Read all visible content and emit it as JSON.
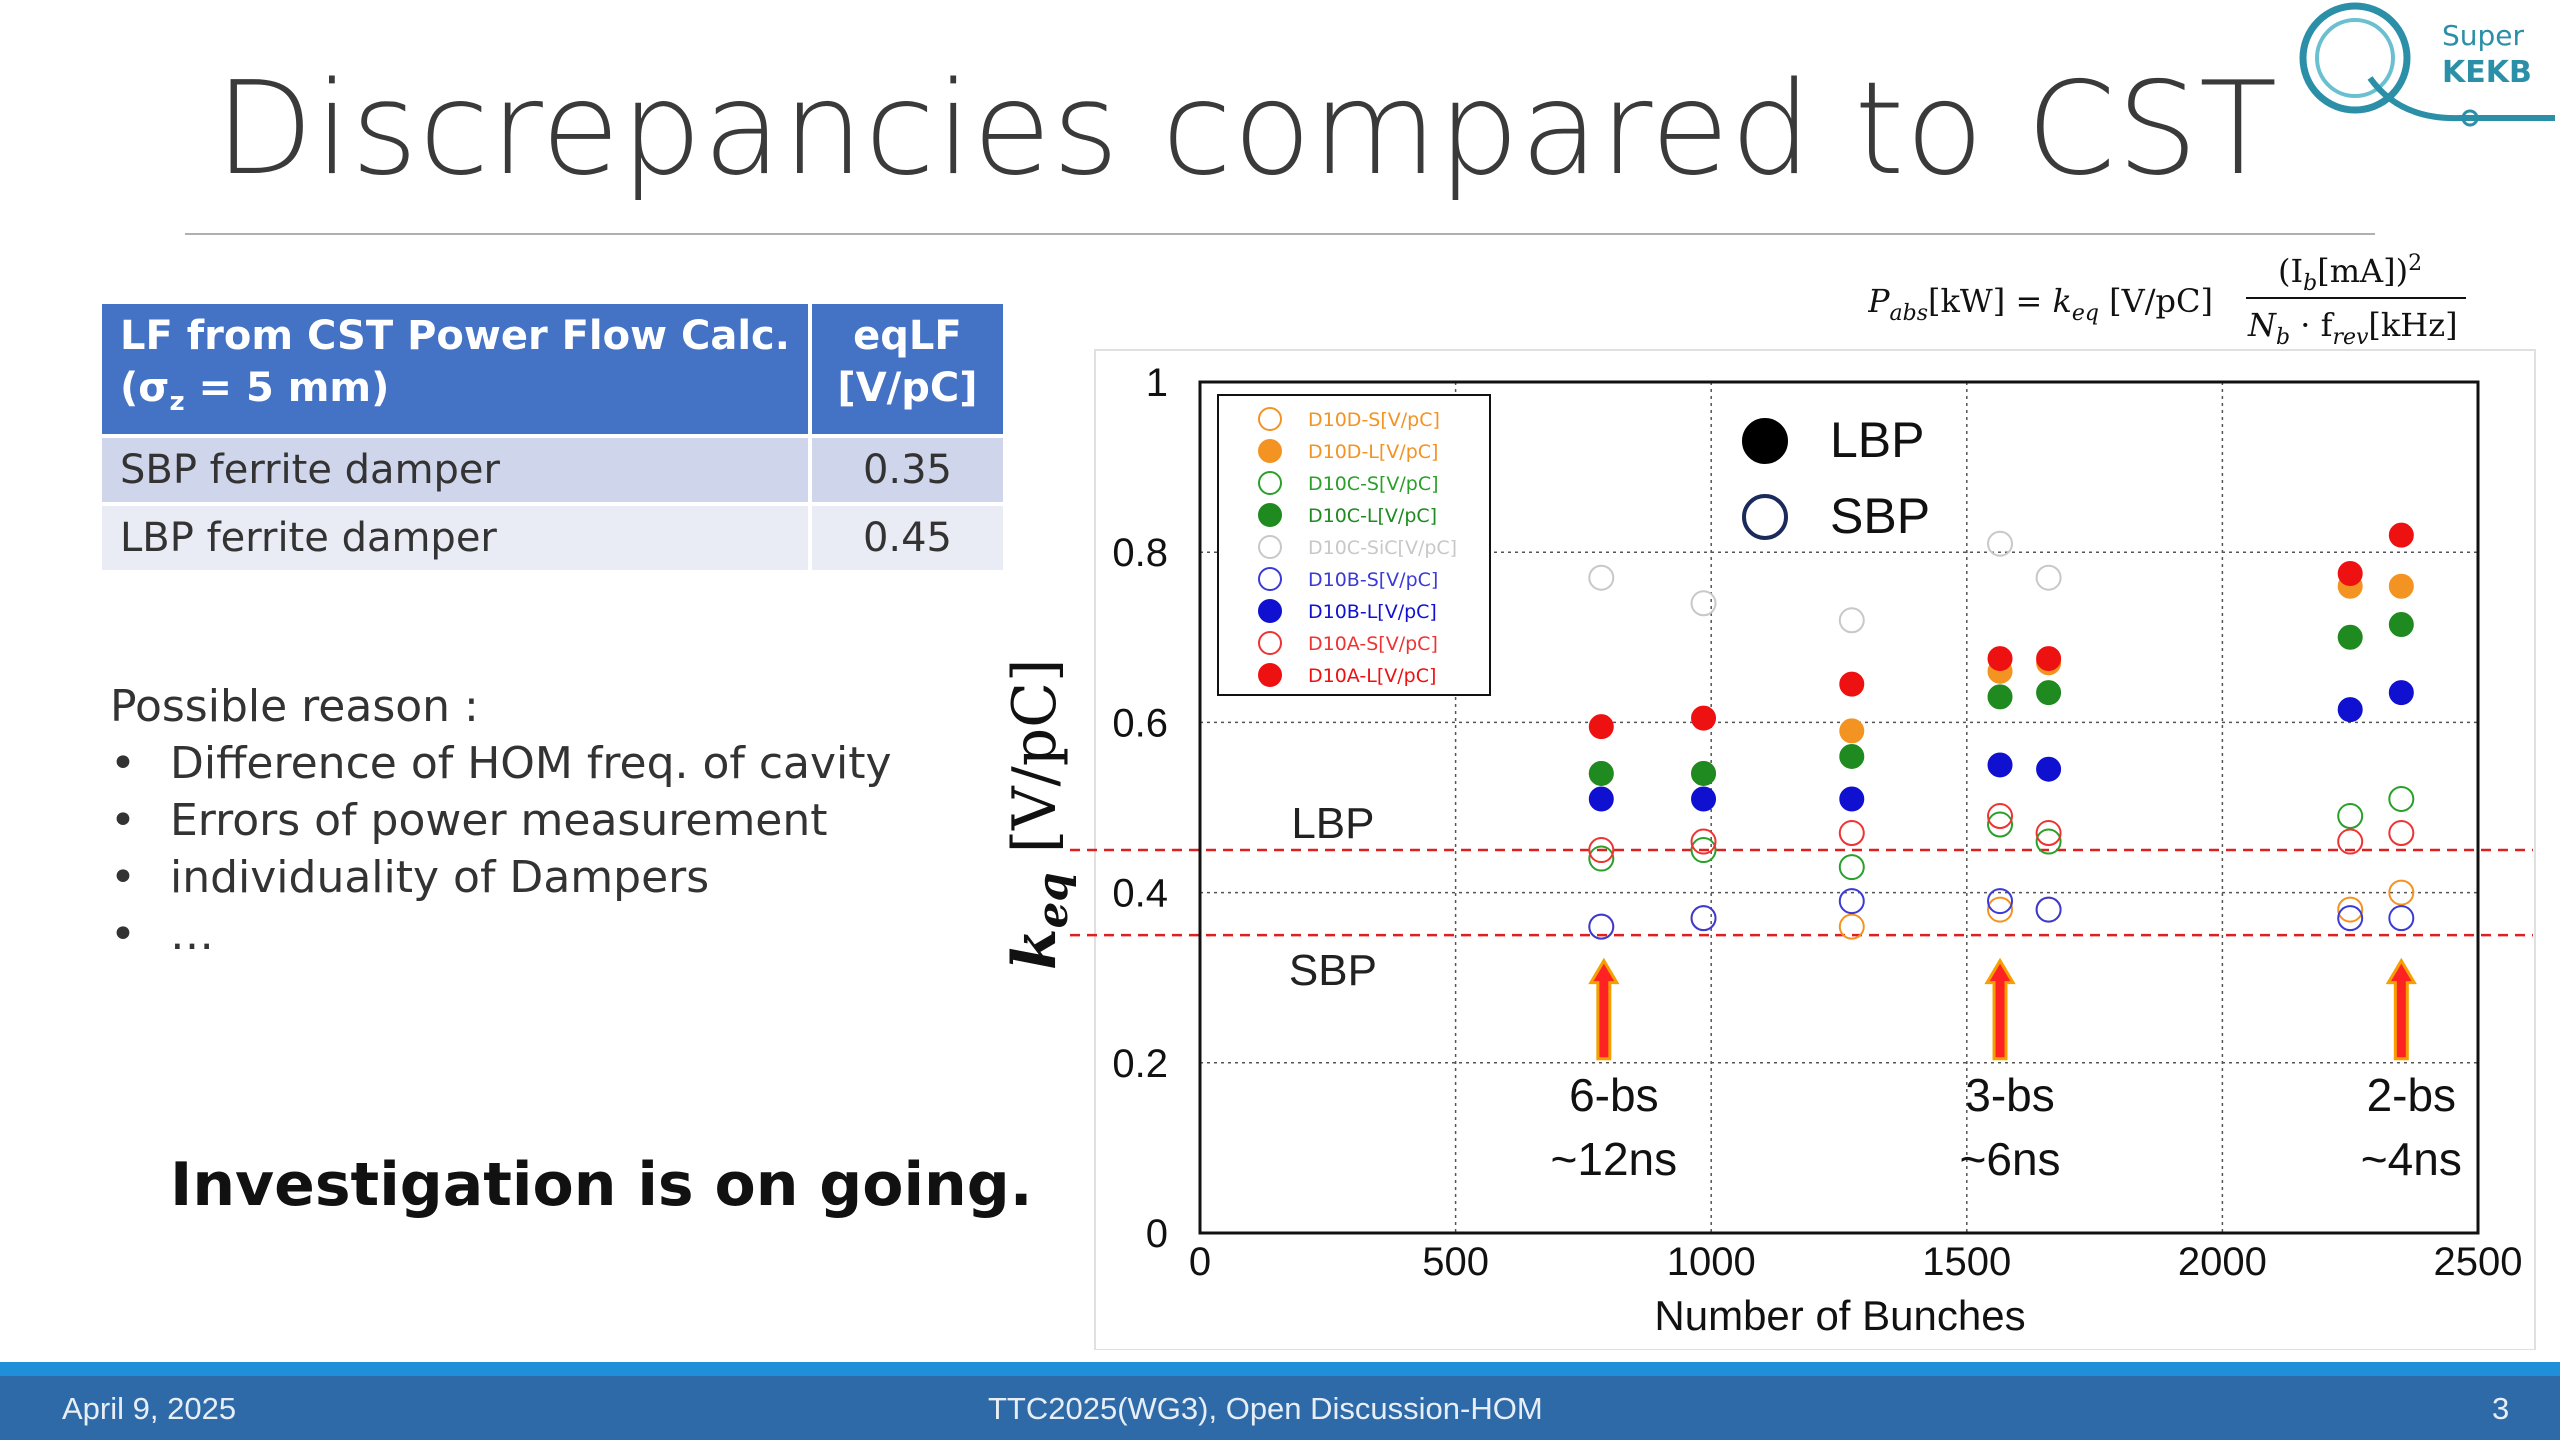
{
  "slide": {
    "title": "Discrepancies compared to CST",
    "logo_text_top": "Super",
    "logo_text_bottom": "KEKB"
  },
  "table": {
    "header_col1_line1": "LF from CST Power Flow Calc.",
    "header_col1_line2": "(σ",
    "header_col1_sub": "z",
    "header_col1_line2_rest": " = 5 mm)",
    "header_col2_line1": "eqLF",
    "header_col2_line2": "[V/pC]",
    "rows": [
      {
        "label": "SBP ferrite damper",
        "value": "0.35"
      },
      {
        "label": "LBP ferrite damper",
        "value": "0.45"
      }
    ]
  },
  "reasons": {
    "heading": "Possible reason :",
    "items": [
      "Difference of HOM freq. of cavity",
      "Errors of power measurement",
      "individuality of Dampers",
      "…"
    ]
  },
  "conclusion": "Investigation is on going.",
  "formula": {
    "lhs": "P",
    "lhs_sub": "abs",
    "lhs_unit": "[kW] = ",
    "k": "k",
    "k_sub": "eq",
    "k_unit": " [V/pC]",
    "numerator": "(I",
    "numerator_sub": "b",
    "numerator_rest": "[mA])",
    "numerator_sup": "2",
    "denominator": "N",
    "denominator_sub": "b",
    "denominator_mid": " · f",
    "denominator_sub2": "rev",
    "denominator_rest": "[kHz]"
  },
  "chart_data": {
    "type": "scatter",
    "xlabel": "Number of Bunches",
    "ylabel": "k",
    "ylabel_sub": "eq",
    "ylabel_unit": " [V/pC]",
    "xlim": [
      0,
      2500
    ],
    "ylim": [
      0,
      1
    ],
    "xticks": [
      0,
      500,
      1000,
      1500,
      2000,
      2500
    ],
    "yticks": [
      0,
      0.2,
      0.4,
      0.6,
      0.8,
      1
    ],
    "grid": true,
    "legend_position": "top-left",
    "marker_legend": [
      {
        "label": "LBP",
        "style": "filled",
        "color": "#000000"
      },
      {
        "label": "SBP",
        "style": "open",
        "color": "#1a2a5a"
      }
    ],
    "hlines": [
      {
        "y": 0.45,
        "label": "LBP",
        "color": "#e02020"
      },
      {
        "y": 0.35,
        "label": "SBP",
        "color": "#e02020"
      }
    ],
    "annotations": [
      {
        "x": 790,
        "line1": "6-bs",
        "line2": "~12ns"
      },
      {
        "x": 1565,
        "line1": "3-bs",
        "line2": "~6ns"
      },
      {
        "x": 2350,
        "line1": "2-bs",
        "line2": "~4ns"
      }
    ],
    "series": [
      {
        "name": "D10D-S[V/pC]",
        "color": "#f39322",
        "filled": false,
        "points": [
          [
            785,
            0.36
          ],
          [
            985,
            0.37
          ],
          [
            1275,
            0.36
          ],
          [
            1565,
            0.38
          ],
          [
            1660,
            0.38
          ],
          [
            2250,
            0.38
          ],
          [
            2350,
            0.4
          ]
        ]
      },
      {
        "name": "D10D-L[V/pC]",
        "color": "#f39322",
        "filled": true,
        "points": [
          [
            785,
            0.54
          ],
          [
            985,
            0.54
          ],
          [
            1275,
            0.59
          ],
          [
            1565,
            0.66
          ],
          [
            1660,
            0.67
          ],
          [
            2250,
            0.76
          ],
          [
            2350,
            0.76
          ]
        ]
      },
      {
        "name": "D10C-S[V/pC]",
        "color": "#2aa02a",
        "filled": false,
        "points": [
          [
            785,
            0.44
          ],
          [
            985,
            0.45
          ],
          [
            1275,
            0.43
          ],
          [
            1565,
            0.48
          ],
          [
            1660,
            0.46
          ],
          [
            2250,
            0.49
          ],
          [
            2350,
            0.51
          ]
        ]
      },
      {
        "name": "D10C-L[V/pC]",
        "color": "#1f8a1f",
        "filled": true,
        "points": [
          [
            785,
            0.54
          ],
          [
            985,
            0.54
          ],
          [
            1275,
            0.56
          ],
          [
            1565,
            0.63
          ],
          [
            1660,
            0.635
          ],
          [
            2250,
            0.7
          ],
          [
            2350,
            0.715
          ]
        ]
      },
      {
        "name": "D10C-SiC[V/pC]",
        "color": "#c8c8c8",
        "filled": false,
        "points": [
          [
            785,
            0.77
          ],
          [
            985,
            0.74
          ],
          [
            1275,
            0.72
          ],
          [
            1565,
            0.81
          ],
          [
            1660,
            0.77
          ]
        ]
      },
      {
        "name": "D10B-S[V/pC]",
        "color": "#3a3ad6",
        "filled": false,
        "points": [
          [
            785,
            0.36
          ],
          [
            985,
            0.37
          ],
          [
            1275,
            0.39
          ],
          [
            1565,
            0.39
          ],
          [
            1660,
            0.38
          ],
          [
            2250,
            0.37
          ],
          [
            2350,
            0.37
          ]
        ]
      },
      {
        "name": "D10B-L[V/pC]",
        "color": "#1010d0",
        "filled": true,
        "points": [
          [
            785,
            0.51
          ],
          [
            985,
            0.51
          ],
          [
            1275,
            0.51
          ],
          [
            1565,
            0.55
          ],
          [
            1660,
            0.545
          ],
          [
            2250,
            0.615
          ],
          [
            2350,
            0.635
          ]
        ]
      },
      {
        "name": "D10A-S[V/pC]",
        "color": "#ee3333",
        "filled": false,
        "points": [
          [
            785,
            0.45
          ],
          [
            985,
            0.46
          ],
          [
            1275,
            0.47
          ],
          [
            1565,
            0.49
          ],
          [
            1660,
            0.47
          ],
          [
            2250,
            0.46
          ],
          [
            2350,
            0.47
          ]
        ]
      },
      {
        "name": "D10A-L[V/pC]",
        "color": "#ee1111",
        "filled": true,
        "points": [
          [
            785,
            0.595
          ],
          [
            985,
            0.605
          ],
          [
            1275,
            0.645
          ],
          [
            1565,
            0.675
          ],
          [
            1660,
            0.675
          ],
          [
            2250,
            0.775
          ],
          [
            2350,
            0.82
          ]
        ]
      }
    ]
  },
  "footer": {
    "date": "April 9, 2025",
    "event": "TTC2025(WG3), Open Discussion-HOM",
    "page": "3"
  }
}
